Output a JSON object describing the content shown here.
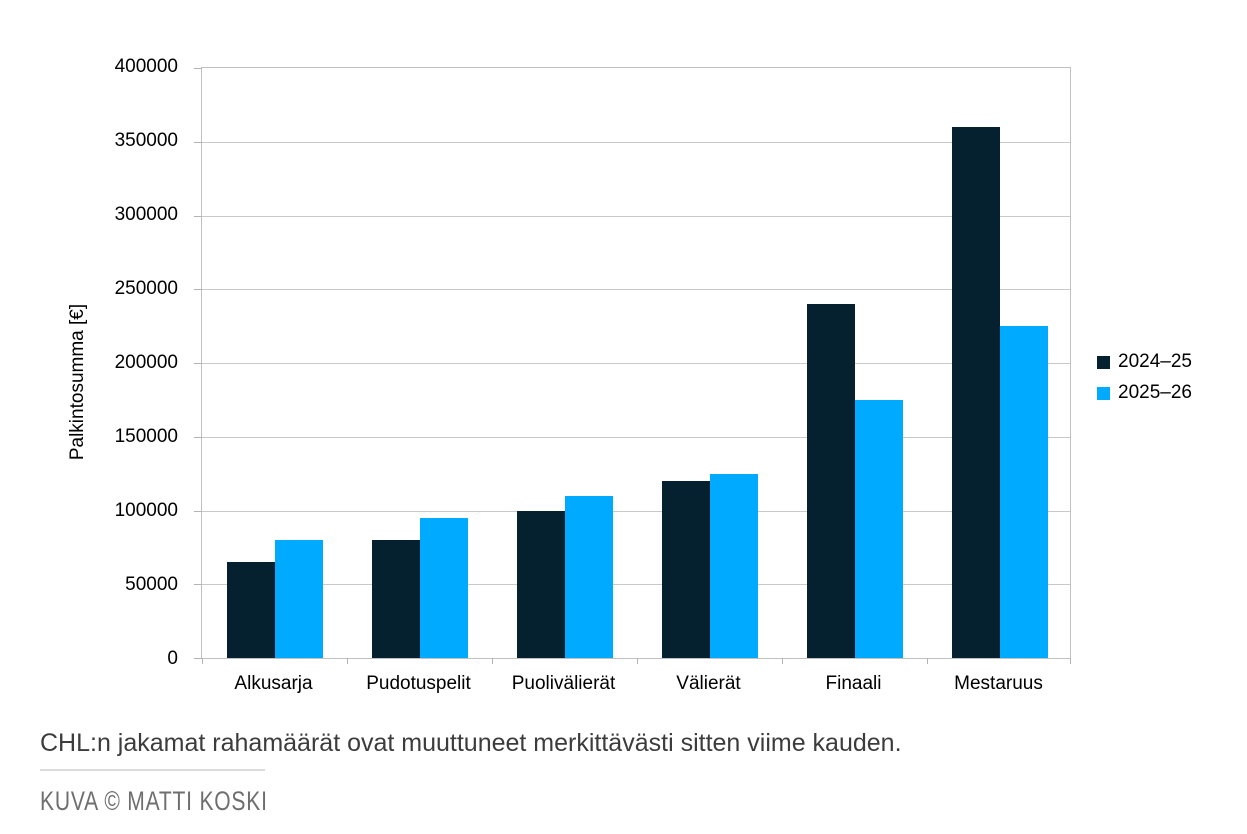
{
  "chart_data": {
    "type": "bar",
    "title": "",
    "ylabel": "Palkintosumma [€]",
    "xlabel": "",
    "categories": [
      "Alkusarja",
      "Pudotuspelit",
      "Puolivälierät",
      "Välierät",
      "Finaali",
      "Mestaruus"
    ],
    "series": [
      {
        "name": "2024–25",
        "color": "#05202F",
        "values": [
          65000,
          80000,
          100000,
          120000,
          240000,
          360000
        ]
      },
      {
        "name": "2025–26",
        "color": "#00AAFF",
        "values": [
          80000,
          95000,
          110000,
          125000,
          175000,
          225000
        ]
      }
    ],
    "ylim": [
      0,
      400000
    ],
    "yticks": [
      0,
      50000,
      100000,
      150000,
      200000,
      250000,
      300000,
      350000,
      400000
    ],
    "grid": true,
    "legend_position": "right"
  },
  "caption": {
    "text": "CHL:n jakamat rahamäärät ovat muuttuneet merkittävästi sitten viime kauden."
  },
  "credit": {
    "text": "KUVA © MATTI KOSKI"
  },
  "colors": {
    "grid": "#c9c9c9",
    "axis": "#c0c0c0",
    "caption_text": "#3c3c3c",
    "credit_text": "#6e6e6e",
    "divider": "#dcdcdc"
  }
}
